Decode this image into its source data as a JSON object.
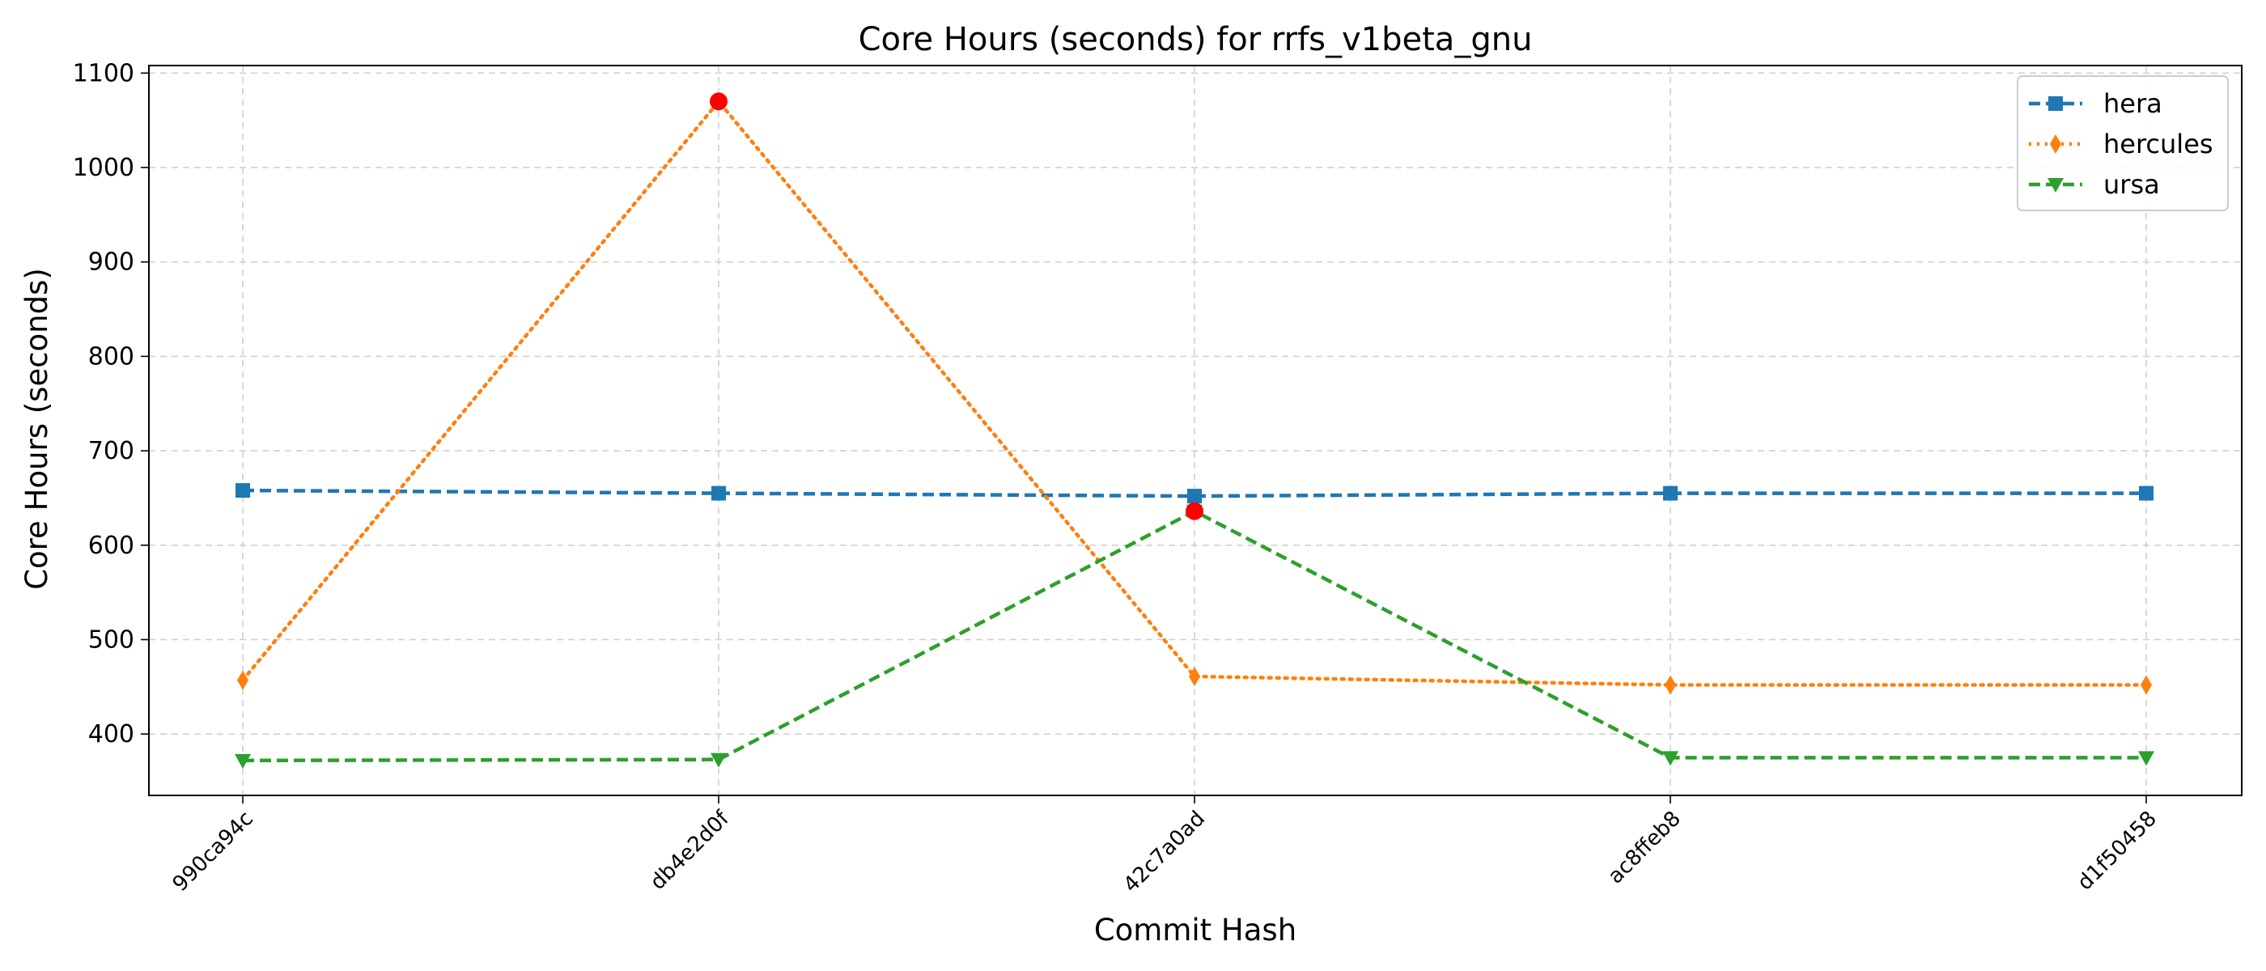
{
  "chart_data": {
    "type": "line",
    "title": "Core Hours (seconds) for rrfs_v1beta_gnu",
    "xlabel": "Commit Hash",
    "ylabel": "Core Hours (seconds)",
    "categories": [
      "990ca94c",
      "db4e2d0f",
      "42c7a0ad",
      "ac8ffeb8",
      "d1f50458"
    ],
    "ylim": [
      335,
      1108
    ],
    "yticks": [
      400,
      500,
      600,
      700,
      800,
      900,
      1000,
      1100
    ],
    "grid": true,
    "legend_position": "top-right",
    "series": [
      {
        "name": "hera",
        "values": [
          658,
          655,
          652,
          655,
          655
        ],
        "color": "#1f77b4",
        "line_style": "dashed",
        "marker": "square"
      },
      {
        "name": "hercules",
        "values": [
          457,
          1070,
          461,
          452,
          452
        ],
        "color": "#ff7f0e",
        "line_style": "dotted",
        "marker": "thin-diamond"
      },
      {
        "name": "ursa",
        "values": [
          372,
          373,
          636,
          375,
          375
        ],
        "color": "#2ca02c",
        "line_style": "dashed",
        "marker": "triangle-down"
      }
    ],
    "highlights": [
      {
        "series": "hercules",
        "category": "db4e2d0f",
        "value": 1070,
        "color": "#ff0000"
      },
      {
        "series": "ursa",
        "category": "42c7a0ad",
        "value": 636,
        "color": "#ff0000"
      }
    ]
  }
}
